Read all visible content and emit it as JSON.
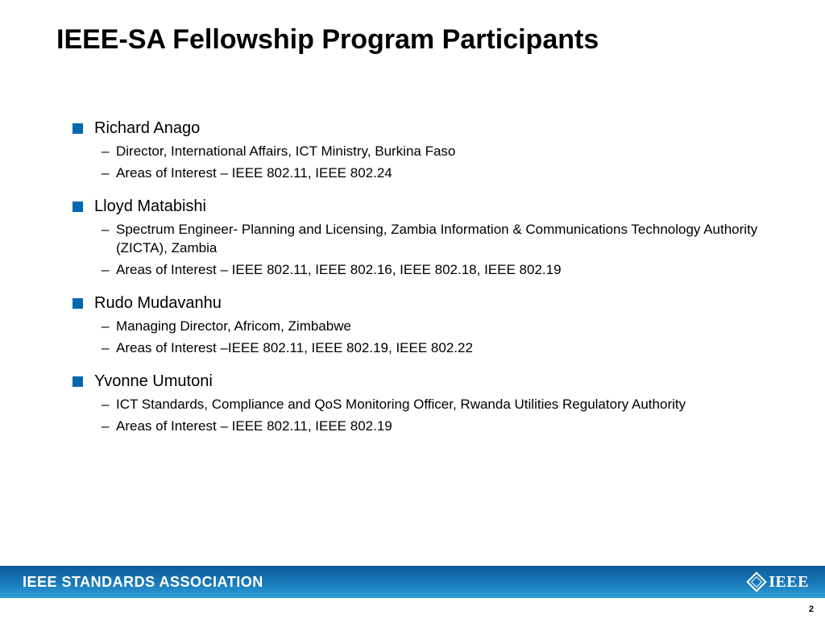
{
  "slide": {
    "title": "IEEE-SA Fellowship Program Participants",
    "bullet_color": "#0068b0",
    "participants": [
      {
        "name": "Richard Anago",
        "details": [
          "Director, International Affairs, ICT Ministry, Burkina Faso",
          "Areas of Interest – IEEE 802.11, IEEE 802.24"
        ]
      },
      {
        "name": "Lloyd Matabishi",
        "details": [
          "Spectrum Engineer- Planning and Licensing, Zambia Information & Communications Technology Authority (ZICTA), Zambia",
          "Areas of Interest – IEEE 802.11, IEEE 802.16, IEEE 802.18, IEEE 802.19"
        ]
      },
      {
        "name": "Rudo Mudavanhu",
        "details": [
          "Managing Director, Africom, Zimbabwe",
          "Areas of Interest –IEEE 802.11, IEEE 802.19, IEEE 802.22"
        ]
      },
      {
        "name": "Yvonne Umutoni",
        "details": [
          "ICT Standards, Compliance and QoS Monitoring Officer, Rwanda Utilities Regulatory Authority",
          "Areas of Interest – IEEE 802.11, IEEE 802.19"
        ]
      }
    ],
    "footer": {
      "left_text": "IEEE STANDARDS ASSOCIATION",
      "ieee_label": "IEEE",
      "bar_gradient_top": "#0b5d97",
      "bar_gradient_bottom": "#2d9fd8"
    },
    "page_number": "2"
  }
}
